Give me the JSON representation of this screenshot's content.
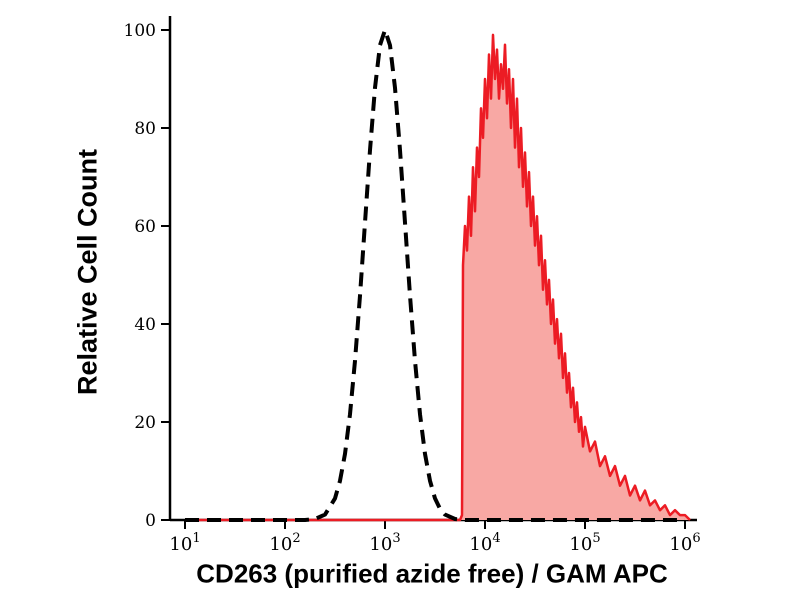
{
  "chart_data": {
    "type": "area",
    "title": "",
    "xlabel": "CD263 (purified azide free) / GAM APC",
    "ylabel": "Relative Cell Count",
    "x_scale": "log10",
    "xlim_log": [
      1,
      6
    ],
    "ylim": [
      0,
      100
    ],
    "grid": false,
    "legend": "none",
    "y_ticks": [
      0,
      20,
      40,
      60,
      80,
      100
    ],
    "x_ticks": [
      {
        "base": "10",
        "exp": 1
      },
      {
        "base": "10",
        "exp": 2
      },
      {
        "base": "10",
        "exp": 3
      },
      {
        "base": "10",
        "exp": 4
      },
      {
        "base": "10",
        "exp": 5
      },
      {
        "base": "10",
        "exp": 6
      }
    ],
    "series": [
      {
        "id": "stained-sample",
        "style": "solid",
        "color": "#ec1c24",
        "fill": "#f8a8a4",
        "width": 2.5,
        "points": [
          [
            1.0,
            0
          ],
          [
            2.0,
            0
          ],
          [
            3.0,
            0
          ],
          [
            3.5,
            0
          ],
          [
            3.7,
            0
          ],
          [
            3.75,
            0
          ],
          [
            3.77,
            1
          ],
          [
            3.78,
            52
          ],
          [
            3.8,
            60
          ],
          [
            3.82,
            55
          ],
          [
            3.84,
            66
          ],
          [
            3.86,
            58
          ],
          [
            3.88,
            72
          ],
          [
            3.9,
            63
          ],
          [
            3.92,
            76
          ],
          [
            3.94,
            70
          ],
          [
            3.96,
            84
          ],
          [
            3.98,
            78
          ],
          [
            4.0,
            90
          ],
          [
            4.02,
            82
          ],
          [
            4.04,
            95
          ],
          [
            4.06,
            86
          ],
          [
            4.08,
            99
          ],
          [
            4.1,
            90
          ],
          [
            4.12,
            96
          ],
          [
            4.14,
            86
          ],
          [
            4.16,
            93
          ],
          [
            4.18,
            88
          ],
          [
            4.2,
            97
          ],
          [
            4.22,
            85
          ],
          [
            4.24,
            92
          ],
          [
            4.26,
            80
          ],
          [
            4.28,
            90
          ],
          [
            4.3,
            76
          ],
          [
            4.32,
            86
          ],
          [
            4.34,
            72
          ],
          [
            4.36,
            80
          ],
          [
            4.38,
            68
          ],
          [
            4.4,
            75
          ],
          [
            4.42,
            64
          ],
          [
            4.44,
            71
          ],
          [
            4.46,
            60
          ],
          [
            4.48,
            66
          ],
          [
            4.5,
            56
          ],
          [
            4.52,
            62
          ],
          [
            4.54,
            52
          ],
          [
            4.56,
            58
          ],
          [
            4.58,
            47
          ],
          [
            4.6,
            53
          ],
          [
            4.62,
            44
          ],
          [
            4.64,
            49
          ],
          [
            4.66,
            40
          ],
          [
            4.68,
            45
          ],
          [
            4.7,
            36
          ],
          [
            4.72,
            41
          ],
          [
            4.74,
            33
          ],
          [
            4.76,
            38
          ],
          [
            4.78,
            29
          ],
          [
            4.8,
            34
          ],
          [
            4.82,
            26
          ],
          [
            4.84,
            30
          ],
          [
            4.86,
            23
          ],
          [
            4.88,
            27
          ],
          [
            4.9,
            20
          ],
          [
            4.92,
            24
          ],
          [
            4.94,
            18
          ],
          [
            4.96,
            21
          ],
          [
            4.98,
            15
          ],
          [
            5.0,
            19
          ],
          [
            5.05,
            14
          ],
          [
            5.1,
            16
          ],
          [
            5.15,
            11
          ],
          [
            5.2,
            13
          ],
          [
            5.25,
            9
          ],
          [
            5.3,
            11
          ],
          [
            5.35,
            7
          ],
          [
            5.4,
            9
          ],
          [
            5.45,
            5
          ],
          [
            5.5,
            7
          ],
          [
            5.55,
            4
          ],
          [
            5.6,
            6
          ],
          [
            5.65,
            3
          ],
          [
            5.7,
            4
          ],
          [
            5.75,
            2
          ],
          [
            5.8,
            3
          ],
          [
            5.85,
            1
          ],
          [
            5.9,
            2
          ],
          [
            5.95,
            1
          ],
          [
            6.0,
            1
          ],
          [
            6.05,
            0
          ]
        ]
      },
      {
        "id": "control",
        "style": "dashed",
        "color": "#000000",
        "fill": "none",
        "width": 4,
        "dash": "14 8",
        "points": [
          [
            1.0,
            0
          ],
          [
            1.5,
            0
          ],
          [
            2.0,
            0
          ],
          [
            2.2,
            0
          ],
          [
            2.3,
            0.2
          ],
          [
            2.4,
            1.1
          ],
          [
            2.5,
            4.4
          ],
          [
            2.55,
            8
          ],
          [
            2.6,
            13.5
          ],
          [
            2.65,
            21.6
          ],
          [
            2.7,
            32.5
          ],
          [
            2.75,
            45.8
          ],
          [
            2.8,
            60.7
          ],
          [
            2.85,
            75.5
          ],
          [
            2.9,
            88.2
          ],
          [
            2.95,
            96.9
          ],
          [
            3.0,
            100
          ],
          [
            3.05,
            96.9
          ],
          [
            3.1,
            88.2
          ],
          [
            3.15,
            75.5
          ],
          [
            3.2,
            60.7
          ],
          [
            3.25,
            45.8
          ],
          [
            3.3,
            32.5
          ],
          [
            3.35,
            21.6
          ],
          [
            3.4,
            13.5
          ],
          [
            3.45,
            8
          ],
          [
            3.5,
            4.4
          ],
          [
            3.55,
            2.3
          ],
          [
            3.6,
            1.1
          ],
          [
            3.7,
            0.2
          ],
          [
            3.8,
            0
          ],
          [
            4.2,
            0
          ],
          [
            4.6,
            0
          ],
          [
            5.0,
            0
          ],
          [
            5.4,
            0
          ],
          [
            5.8,
            0
          ],
          [
            6.0,
            0
          ]
        ]
      }
    ]
  }
}
